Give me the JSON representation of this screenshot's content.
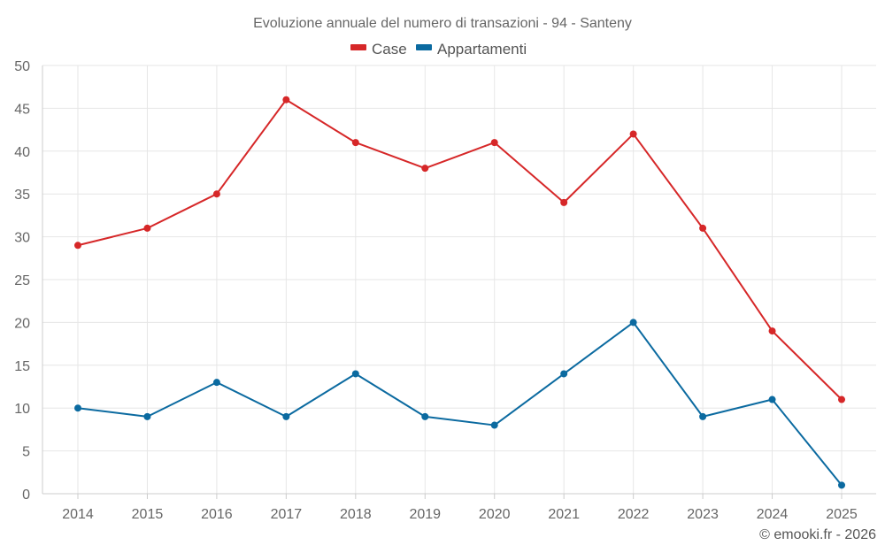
{
  "chart_data": {
    "type": "line",
    "title": "Evoluzione annuale del numero di transazioni - 94 - Santeny",
    "categories": [
      "2014",
      "2015",
      "2016",
      "2017",
      "2018",
      "2019",
      "2020",
      "2021",
      "2022",
      "2023",
      "2024",
      "2025"
    ],
    "series": [
      {
        "name": "Case",
        "color": "#d62728",
        "values": [
          29,
          31,
          35,
          46,
          41,
          38,
          41,
          34,
          42,
          31,
          19,
          11
        ]
      },
      {
        "name": "Appartamenti",
        "color": "#0b6aa0",
        "values": [
          10,
          9,
          13,
          9,
          14,
          9,
          8,
          14,
          20,
          9,
          11,
          1
        ]
      }
    ],
    "xlabel": "",
    "ylabel": "",
    "ylim": [
      0,
      50
    ],
    "yticks": [
      0,
      5,
      10,
      15,
      20,
      25,
      30,
      35,
      40,
      45,
      50
    ],
    "grid": true,
    "legend": "top-center"
  },
  "credit": "© emooki.fr - 2026",
  "colors": {
    "grid": "#e6e6e6",
    "axis": "#cccccc",
    "text": "#666666"
  }
}
